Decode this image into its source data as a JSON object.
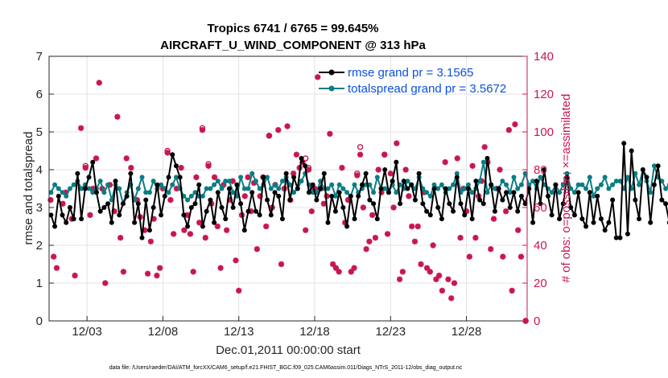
{
  "chart_data": {
    "type": "line",
    "title_line1": "Tropics 6741 / 6765 = 99.645%",
    "title_line2": "AIRCRAFT_U_WIND_COMPONENT @ 313 hPa",
    "xlabel": "Dec.01,2011 00:00:00 start",
    "ylabel_left": "rmse and totalspread",
    "ylabel_right": "# of obs: o=possible; ×=assimilated",
    "footnote": "data file: /Users/raeder/DAI/ATM_forcXX/CAM6_setup/f.e21.FHIST_BGC.f09_025.CAM6assim.011/Diags_NTrS_2011-12/obs_diag_output.nc",
    "xlim": [
      0.5,
      32.0
    ],
    "ylim_left": [
      0,
      7
    ],
    "ylim_right": [
      0,
      140
    ],
    "x_ticks": [
      {
        "x": 3,
        "label": "12/03"
      },
      {
        "x": 8,
        "label": "12/08"
      },
      {
        "x": 13,
        "label": "12/13"
      },
      {
        "x": 18,
        "label": "12/18"
      },
      {
        "x": 23,
        "label": "12/23"
      },
      {
        "x": 28,
        "label": "12/28"
      }
    ],
    "y_ticks_left": [
      "0",
      "1",
      "2",
      "3",
      "4",
      "5",
      "6",
      "7"
    ],
    "y_ticks_right": [
      "0",
      "20",
      "40",
      "60",
      "80",
      "100",
      "120",
      "140"
    ],
    "grid": true,
    "legend_position": "top-right",
    "x_start": 0.625,
    "x_step": 0.25,
    "series": [
      {
        "name": "rmse grand pr = 3.1565",
        "color": "#000000",
        "axis": "left",
        "values": [
          2.8,
          2.5,
          3.3,
          2.8,
          2.6,
          3.0,
          2.7,
          3.9,
          2.7,
          3.5,
          3.8,
          4.2,
          3.4,
          2.9,
          3.0,
          3.1,
          2.6,
          3.7,
          2.8,
          3.1,
          3.3,
          3.9,
          2.6,
          3.1,
          2.2,
          3.2,
          2.4,
          3.0,
          3.6,
          2.8,
          3.3,
          3.8,
          4.4,
          4.1,
          3.8,
          2.8,
          2.5,
          3.0,
          3.1,
          3.6,
          2.5,
          2.9,
          3.2,
          2.6,
          3.4,
          3.0,
          2.7,
          3.5,
          3.0,
          3.6,
          3.1,
          2.4,
          2.9,
          3.4,
          2.9,
          2.8,
          3.8,
          3.2,
          2.8,
          3.4,
          3.3,
          2.7,
          3.9,
          3.2,
          3.8,
          3.5,
          4.3,
          4.1,
          3.4,
          3.6,
          3.2,
          3.5,
          3.9,
          2.6,
          3.3,
          2.9,
          3.4,
          3.0,
          2.5,
          3.3,
          2.7,
          3.3,
          3.6,
          3.9,
          3.2,
          3.1,
          2.7,
          3.5,
          4.0,
          3.4,
          3.7,
          4.2,
          3.1,
          3.7,
          3.5,
          3.6,
          3.2,
          3.9,
          3.1,
          2.9,
          2.8,
          3.5,
          3.0,
          2.7,
          3.5,
          3.1,
          2.9,
          3.8,
          3.1,
          2.8,
          3.5,
          2.7,
          3.7,
          3.2,
          3.1,
          4.3,
          3.6,
          2.9,
          3.5,
          3.2,
          3.4,
          3.0,
          3.4,
          2.9,
          3.3,
          3.1,
          3.5,
          2.6,
          3.7,
          3.1,
          4.0,
          3.3,
          2.8,
          3.6,
          2.7,
          3.1,
          3.8,
          3.0,
          2.8,
          3.4,
          2.7,
          2.5,
          3.4,
          2.6,
          3.3,
          2.7,
          2.4,
          2.6,
          3.2,
          2.2,
          2.2,
          4.7,
          2.3,
          4.5,
          3.2,
          2.7,
          4.0,
          3.8,
          2.6,
          3.6,
          4.1,
          3.2,
          3.1,
          2.6,
          2.4,
          3.2,
          2.9,
          3.9,
          4.9,
          5.0,
          3.3,
          2.8,
          4.3,
          3.8,
          2.3,
          3.2,
          3.3,
          3.0,
          3.7,
          3.2,
          3.6,
          3.3,
          4.0,
          5.0,
          3.5,
          3.1
        ]
      },
      {
        "name": "totalspread grand pr = 3.5672",
        "color": "#0b7d84",
        "axis": "left",
        "values": [
          3.4,
          3.6,
          3.5,
          3.4,
          3.3,
          3.5,
          3.6,
          3.7,
          3.5,
          3.6,
          3.5,
          3.4,
          3.5,
          3.7,
          3.4,
          3.6,
          3.2,
          3.6,
          3.5,
          3.1,
          3.4,
          3.6,
          3.2,
          3.5,
          3.8,
          3.4,
          3.4,
          3.7,
          3.5,
          3.6,
          3.5,
          3.4,
          3.6,
          3.8,
          3.5,
          3.3,
          3.2,
          3.3,
          3.4,
          3.3,
          3.3,
          3.5,
          3.5,
          3.6,
          3.7,
          3.5,
          3.7,
          3.7,
          3.4,
          3.3,
          3.8,
          3.5,
          3.5,
          3.9,
          3.7,
          3.5,
          3.6,
          3.8,
          3.5,
          3.6,
          3.5,
          3.7,
          3.8,
          3.6,
          3.4,
          3.5,
          3.7,
          3.9,
          3.6,
          3.4,
          3.4,
          3.7,
          3.5,
          3.5,
          3.6,
          3.3,
          3.6,
          3.5,
          3.4,
          3.3,
          3.6,
          3.4,
          3.5,
          3.6,
          3.6,
          3.4,
          3.8,
          3.5,
          3.5,
          3.4,
          3.6,
          3.4,
          3.6,
          3.5,
          3.7,
          3.6,
          3.5,
          3.8,
          3.5,
          3.4,
          3.3,
          3.6,
          3.5,
          3.6,
          3.4,
          3.5,
          3.6,
          3.9,
          3.4,
          3.5,
          3.6,
          3.4,
          3.5,
          3.7,
          4.2,
          3.4,
          3.6,
          3.5,
          3.5,
          3.7,
          3.6,
          3.4,
          3.8,
          3.5,
          3.6,
          3.9,
          3.6,
          3.7,
          3.5,
          3.8,
          3.6,
          3.5,
          3.4,
          3.6,
          3.4,
          3.6,
          3.9,
          3.5,
          3.4,
          3.6,
          3.6,
          3.5,
          3.8,
          3.3,
          3.5,
          3.6,
          3.8,
          3.5,
          3.6,
          3.7,
          3.7,
          3.5,
          3.8,
          3.5,
          3.9,
          3.6,
          4.0,
          3.7,
          3.4,
          4.1,
          3.8,
          3.7,
          3.5,
          3.6,
          3.8,
          3.4,
          3.7,
          3.5,
          3.6,
          3.7,
          3.8,
          3.5,
          3.5,
          3.7,
          3.9,
          3.6,
          3.5,
          3.8,
          3.7,
          3.6,
          3.7,
          3.9,
          3.5,
          3.8,
          3.7,
          3.8,
          3.6,
          3.7,
          3.8,
          3.5,
          3.2
        ]
      },
      {
        "name": "# of obs assimilated",
        "color": "#c8174f",
        "axis": "right",
        "marker": "asterisk",
        "points": [
          [
            0.6,
            64
          ],
          [
            0.8,
            34
          ],
          [
            1.0,
            28
          ],
          [
            1.4,
            62
          ],
          [
            1.6,
            68
          ],
          [
            2.0,
            54
          ],
          [
            2.2,
            24
          ],
          [
            2.6,
            102
          ],
          [
            2.9,
            81
          ],
          [
            3.2,
            56
          ],
          [
            3.4,
            70
          ],
          [
            3.6,
            86
          ],
          [
            3.8,
            126
          ],
          [
            4.0,
            70
          ],
          [
            4.2,
            20
          ],
          [
            4.5,
            72
          ],
          [
            4.8,
            58
          ],
          [
            5.0,
            108
          ],
          [
            5.2,
            44
          ],
          [
            5.4,
            26
          ],
          [
            5.6,
            86
          ],
          [
            5.9,
            81
          ],
          [
            6.3,
            64
          ],
          [
            6.5,
            55
          ],
          [
            6.8,
            48
          ],
          [
            7.0,
            25
          ],
          [
            7.2,
            42
          ],
          [
            7.4,
            54
          ],
          [
            7.6,
            24
          ],
          [
            7.8,
            28
          ],
          [
            8.0,
            70
          ],
          [
            8.3,
            89
          ],
          [
            8.5,
            64
          ],
          [
            8.7,
            46
          ],
          [
            8.9,
            70
          ],
          [
            9.2,
            81
          ],
          [
            9.4,
            48
          ],
          [
            9.6,
            56
          ],
          [
            9.8,
            46
          ],
          [
            10.0,
            26
          ],
          [
            10.2,
            76
          ],
          [
            10.4,
            52
          ],
          [
            10.6,
            101
          ],
          [
            10.8,
            44
          ],
          [
            11.0,
            82
          ],
          [
            11.2,
            62
          ],
          [
            11.4,
            76
          ],
          [
            11.6,
            50
          ],
          [
            11.8,
            28
          ],
          [
            12.0,
            72
          ],
          [
            12.2,
            48
          ],
          [
            12.4,
            64
          ],
          [
            12.6,
            74
          ],
          [
            12.8,
            32
          ],
          [
            13.0,
            16
          ],
          [
            13.2,
            56
          ],
          [
            13.4,
            66
          ],
          [
            13.6,
            76
          ],
          [
            13.8,
            58
          ],
          [
            14.0,
            73
          ],
          [
            14.2,
            38
          ],
          [
            14.4,
            66
          ],
          [
            14.6,
            76
          ],
          [
            14.8,
            50
          ],
          [
            15.0,
            98
          ],
          [
            15.2,
            60
          ],
          [
            15.4,
            72
          ],
          [
            15.6,
            101
          ],
          [
            15.8,
            30
          ],
          [
            16.0,
            70
          ],
          [
            16.2,
            103
          ],
          [
            16.4,
            64
          ],
          [
            16.6,
            78
          ],
          [
            16.8,
            88
          ],
          [
            17.0,
            81
          ],
          [
            17.2,
            84
          ],
          [
            17.4,
            48
          ],
          [
            17.6,
            80
          ],
          [
            17.8,
            58
          ],
          [
            18.0,
            70
          ],
          [
            18.2,
            129
          ],
          [
            18.4,
            70
          ],
          [
            18.6,
            62
          ],
          [
            18.8,
            66
          ],
          [
            19.0,
            99
          ],
          [
            19.2,
            30
          ],
          [
            19.4,
            28
          ],
          [
            19.6,
            26
          ],
          [
            19.8,
            81
          ],
          [
            20.0,
            52
          ],
          [
            20.2,
            64
          ],
          [
            20.4,
            26
          ],
          [
            20.6,
            28
          ],
          [
            20.8,
            77
          ],
          [
            21.0,
            88
          ],
          [
            21.2,
            60
          ],
          [
            21.4,
            38
          ],
          [
            21.6,
            42
          ],
          [
            21.8,
            56
          ],
          [
            22.0,
            44
          ],
          [
            22.2,
            80
          ],
          [
            22.4,
            68
          ],
          [
            22.6,
            88
          ],
          [
            22.8,
            46
          ],
          [
            23.0,
            78
          ],
          [
            23.2,
            60
          ],
          [
            23.4,
            94
          ],
          [
            23.6,
            22
          ],
          [
            23.8,
            26
          ],
          [
            24.0,
            80
          ],
          [
            24.2,
            66
          ],
          [
            24.4,
            50
          ],
          [
            24.6,
            42
          ],
          [
            24.8,
            50
          ],
          [
            25.0,
            30
          ],
          [
            25.2,
            68
          ],
          [
            25.4,
            28
          ],
          [
            25.6,
            26
          ],
          [
            25.8,
            40
          ],
          [
            26.0,
            22
          ],
          [
            26.2,
            24
          ],
          [
            26.4,
            16
          ],
          [
            26.6,
            84
          ],
          [
            26.8,
            22
          ],
          [
            27.0,
            12
          ],
          [
            27.2,
            20
          ],
          [
            27.4,
            86
          ],
          [
            27.6,
            44
          ],
          [
            27.8,
            70
          ],
          [
            28.0,
            58
          ],
          [
            28.2,
            34
          ],
          [
            28.4,
            82
          ],
          [
            28.6,
            44
          ],
          [
            28.8,
            66
          ],
          [
            29.0,
            74
          ],
          [
            29.2,
            92
          ],
          [
            29.4,
            84
          ],
          [
            29.6,
            38
          ],
          [
            29.8,
            54
          ],
          [
            30.0,
            70
          ],
          [
            30.2,
            80
          ],
          [
            30.4,
            34
          ],
          [
            30.6,
            58
          ],
          [
            30.8,
            101
          ],
          [
            31.0,
            16
          ],
          [
            31.2,
            104
          ],
          [
            31.4,
            48
          ],
          [
            31.6,
            34
          ],
          [
            31.9,
            0
          ]
        ]
      },
      {
        "name": "# of obs possible",
        "color": "#c8174f",
        "axis": "right",
        "marker": "circle",
        "points": [
          [
            2.9,
            82
          ],
          [
            8.3,
            90
          ],
          [
            10.6,
            102
          ],
          [
            11.0,
            83
          ],
          [
            15.0,
            98
          ],
          [
            17.4,
            86
          ],
          [
            17.6,
            81
          ],
          [
            20.8,
            78
          ],
          [
            21.0,
            92
          ],
          [
            22.6,
            88
          ],
          [
            31.9,
            0
          ]
        ]
      }
    ]
  }
}
